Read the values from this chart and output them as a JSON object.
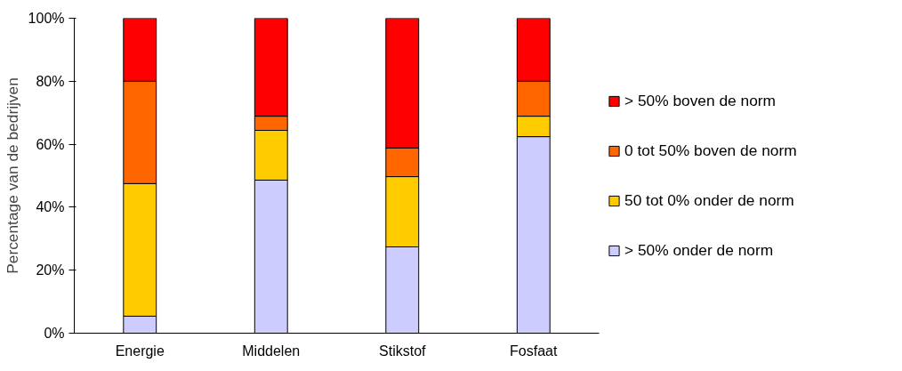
{
  "chart_data": {
    "type": "bar",
    "stacked": true,
    "ylabel": "Percentage van de bedrijven",
    "categories": [
      "Energie",
      "Middelen",
      "Stikstof",
      "Fosfaat"
    ],
    "series": [
      {
        "name": "> 50% onder de norm",
        "color": "#ccccff",
        "values": [
          5.4,
          48.6,
          27.4,
          62.4
        ]
      },
      {
        "name": "50 tot 0% onder de norm",
        "color": "#ffcc00",
        "values": [
          42.1,
          15.8,
          22.3,
          6.5
        ]
      },
      {
        "name": "0 tot 50% boven de norm",
        "color": "#ff6600",
        "values": [
          32.5,
          4.5,
          9.1,
          11.1
        ]
      },
      {
        "name": "> 50% boven de norm",
        "color": "#ff0000",
        "values": [
          20,
          31.1,
          41.2,
          20
        ]
      }
    ],
    "ylim": [
      0,
      100
    ],
    "yticks": [
      {
        "value": 0,
        "label": "0%"
      },
      {
        "value": 20,
        "label": "20%"
      },
      {
        "value": 40,
        "label": "40%"
      },
      {
        "value": 60,
        "label": "60%"
      },
      {
        "value": 80,
        "label": "80%"
      },
      {
        "value": 100,
        "label": "100%"
      }
    ],
    "grid": false,
    "legend": "right"
  }
}
